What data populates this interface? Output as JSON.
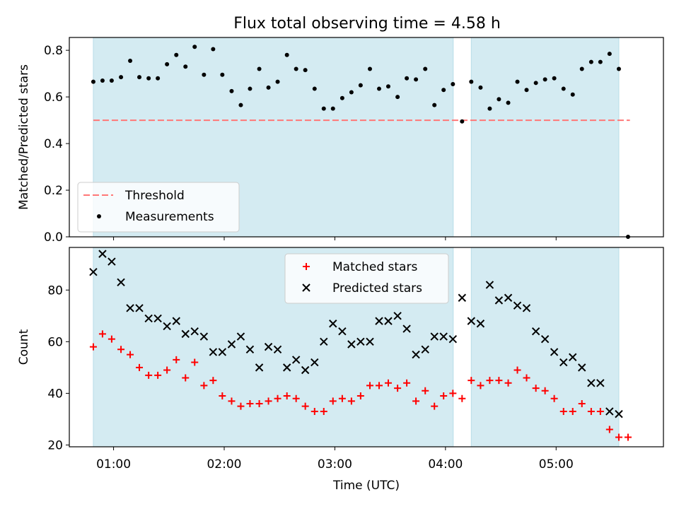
{
  "figure": {
    "title": "Flux total observing time = 4.58 h"
  },
  "chart_data": [
    {
      "type": "scatter",
      "ylabel": "Matched/Predicted stars",
      "xlabel": "",
      "xlim": [
        0.6,
        5.97
      ],
      "ylim": [
        0.0,
        0.855
      ],
      "yticks": [
        0.0,
        0.2,
        0.4,
        0.6,
        0.8
      ],
      "ytick_labels": [
        "0.0",
        "0.2",
        "0.4",
        "0.6",
        "0.8"
      ],
      "shaded_intervals": [
        [
          0.817,
          4.07
        ],
        [
          4.233,
          5.567
        ]
      ],
      "shade_color": "#d4ebf2",
      "legend": {
        "position": "lower-left",
        "items": [
          {
            "label": "Threshold",
            "style": "dashed-line",
            "color": "#ff7777"
          },
          {
            "label": "Measurements",
            "style": "dot",
            "color": "#000000"
          }
        ]
      },
      "series": [
        {
          "name": "Threshold",
          "kind": "hline",
          "y": 0.5,
          "x": [
            0.817,
            5.667
          ],
          "color": "#ff7777"
        },
        {
          "name": "Measurements",
          "kind": "points",
          "color": "#000000",
          "x": [
            0.817,
            0.9,
            0.983,
            1.067,
            1.15,
            1.233,
            1.317,
            1.4,
            1.483,
            1.567,
            1.65,
            1.733,
            1.817,
            1.9,
            1.983,
            2.067,
            2.15,
            2.233,
            2.317,
            2.4,
            2.483,
            2.567,
            2.65,
            2.733,
            2.817,
            2.9,
            2.983,
            3.067,
            3.15,
            3.233,
            3.317,
            3.4,
            3.483,
            3.567,
            3.65,
            3.733,
            3.817,
            3.9,
            3.983,
            4.067,
            4.15,
            4.233,
            4.317,
            4.4,
            4.483,
            4.567,
            4.65,
            4.733,
            4.817,
            4.9,
            4.983,
            5.067,
            5.15,
            5.233,
            5.317,
            5.4,
            5.483,
            5.567,
            5.65
          ],
          "y": [
            0.665,
            0.67,
            0.67,
            0.685,
            0.755,
            0.685,
            0.68,
            0.68,
            0.74,
            0.78,
            0.73,
            0.815,
            0.695,
            0.805,
            0.695,
            0.625,
            0.565,
            0.635,
            0.72,
            0.64,
            0.665,
            0.78,
            0.72,
            0.715,
            0.635,
            0.55,
            0.55,
            0.595,
            0.62,
            0.65,
            0.72,
            0.635,
            0.645,
            0.6,
            0.68,
            0.675,
            0.72,
            0.565,
            0.63,
            0.655,
            0.495,
            0.665,
            0.64,
            0.55,
            0.59,
            0.575,
            0.665,
            0.63,
            0.66,
            0.675,
            0.68,
            0.635,
            0.61,
            0.72,
            0.75,
            0.75,
            0.785,
            0.72,
            0.0
          ]
        }
      ]
    },
    {
      "type": "scatter",
      "ylabel": "Count",
      "xlabel": "Time (UTC)",
      "xlim": [
        0.6,
        5.97
      ],
      "ylim": [
        19.3,
        96.5
      ],
      "yticks": [
        20,
        40,
        60,
        80
      ],
      "ytick_labels": [
        "20",
        "40",
        "60",
        "80"
      ],
      "xticks": [
        1,
        2,
        3,
        4,
        5
      ],
      "xtick_labels": [
        "01:00",
        "02:00",
        "03:00",
        "04:00",
        "05:00"
      ],
      "shaded_intervals": [
        [
          0.817,
          4.07
        ],
        [
          4.233,
          5.567
        ]
      ],
      "shade_color": "#d4ebf2",
      "legend": {
        "position": "upper-center",
        "items": [
          {
            "label": "Matched stars",
            "style": "plus",
            "color": "#ff0000"
          },
          {
            "label": "Predicted stars",
            "style": "cross",
            "color": "#000000"
          }
        ]
      },
      "series": [
        {
          "name": "Matched stars",
          "marker": "plus",
          "color": "#ff0000",
          "x": [
            0.817,
            0.9,
            0.983,
            1.067,
            1.15,
            1.233,
            1.317,
            1.4,
            1.483,
            1.567,
            1.65,
            1.733,
            1.817,
            1.9,
            1.983,
            2.067,
            2.15,
            2.233,
            2.317,
            2.4,
            2.483,
            2.567,
            2.65,
            2.733,
            2.817,
            2.9,
            2.983,
            3.067,
            3.15,
            3.233,
            3.317,
            3.4,
            3.483,
            3.567,
            3.65,
            3.733,
            3.817,
            3.9,
            3.983,
            4.067,
            4.15,
            4.233,
            4.317,
            4.4,
            4.483,
            4.567,
            4.65,
            4.733,
            4.817,
            4.9,
            4.983,
            5.067,
            5.15,
            5.233,
            5.317,
            5.4,
            5.483,
            5.567,
            5.65
          ],
          "y": [
            58,
            63,
            61,
            57,
            55,
            50,
            47,
            47,
            49,
            53,
            46,
            52,
            43,
            45,
            39,
            37,
            35,
            36,
            36,
            37,
            38,
            39,
            38,
            35,
            33,
            33,
            37,
            38,
            37,
            39,
            43,
            43,
            44,
            42,
            44,
            37,
            41,
            35,
            39,
            40,
            38,
            45,
            43,
            45,
            45,
            44,
            49,
            46,
            42,
            41,
            38,
            33,
            33,
            36,
            33,
            33,
            26,
            23,
            23
          ]
        },
        {
          "name": "Predicted stars",
          "marker": "cross",
          "color": "#000000",
          "x": [
            0.817,
            0.9,
            0.983,
            1.067,
            1.15,
            1.233,
            1.317,
            1.4,
            1.483,
            1.567,
            1.65,
            1.733,
            1.817,
            1.9,
            1.983,
            2.067,
            2.15,
            2.233,
            2.317,
            2.4,
            2.483,
            2.567,
            2.65,
            2.733,
            2.817,
            2.9,
            2.983,
            3.067,
            3.15,
            3.233,
            3.317,
            3.4,
            3.483,
            3.567,
            3.65,
            3.733,
            3.817,
            3.9,
            3.983,
            4.067,
            4.15,
            4.233,
            4.317,
            4.4,
            4.483,
            4.567,
            4.65,
            4.733,
            4.817,
            4.9,
            4.983,
            5.067,
            5.15,
            5.233,
            5.317,
            5.4,
            5.483,
            5.567
          ],
          "y": [
            87,
            94,
            91,
            83,
            73,
            73,
            69,
            69,
            66,
            68,
            63,
            64,
            62,
            56,
            56,
            59,
            62,
            57,
            50,
            58,
            57,
            50,
            53,
            49,
            52,
            60,
            67,
            64,
            59,
            60,
            60,
            68,
            68,
            70,
            65,
            55,
            57,
            62,
            62,
            61,
            77,
            68,
            67,
            82,
            76,
            77,
            74,
            73,
            64,
            61,
            56,
            52,
            54,
            50,
            44,
            44,
            33,
            32
          ]
        }
      ]
    }
  ]
}
